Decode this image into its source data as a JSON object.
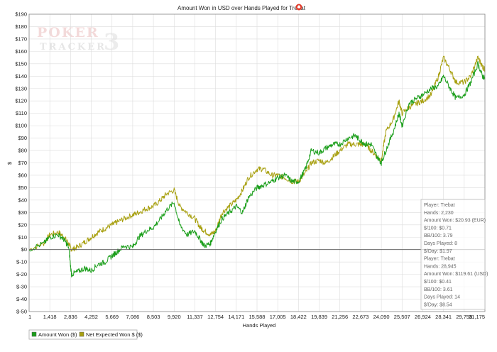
{
  "chart_data": {
    "type": "line",
    "title": "Amount Won in USD over Hands Played for Trebat",
    "xlabel": "Hands Played",
    "ylabel": "$",
    "xlim": [
      1,
      31175
    ],
    "ylim": [
      -50,
      190
    ],
    "grid": true,
    "legend_position": "bottom-left",
    "x_ticks": [
      "1",
      "1,418",
      "2,836",
      "4,252",
      "5,669",
      "7,086",
      "8,503",
      "9,920",
      "11,337",
      "12,754",
      "14,171",
      "15,588",
      "17,005",
      "18,422",
      "19,839",
      "21,256",
      "22,673",
      "24,090",
      "25,507",
      "26,924",
      "28,341",
      "29,758",
      "31,175"
    ],
    "y_ticks": [
      "$-50",
      "$-40",
      "$-30",
      "$-20",
      "$-10",
      "$0",
      "$10",
      "$20",
      "$30",
      "$40",
      "$50",
      "$60",
      "$70",
      "$80",
      "$90",
      "$100",
      "$110",
      "$120",
      "$130",
      "$140",
      "$150",
      "$160",
      "$170",
      "$180",
      "$190"
    ],
    "series": [
      {
        "name": "Amount Won ($)",
        "color": "#1a9e1a",
        "x": [
          1,
          1000,
          1418,
          2000,
          2400,
          2700,
          2900,
          3300,
          3800,
          4252,
          4700,
          5200,
          5669,
          6000,
          6500,
          7086,
          7500,
          8000,
          8503,
          9000,
          9400,
          9920,
          10300,
          10800,
          11337,
          11700,
          12000,
          12400,
          12754,
          13200,
          13700,
          14171,
          14600,
          15000,
          15588,
          16000,
          16600,
          17005,
          17500,
          18000,
          18422,
          18900,
          19300,
          19839,
          20300,
          20800,
          21256,
          21800,
          22300,
          22673,
          23000,
          23400,
          23800,
          24090,
          24400,
          24900,
          25300,
          25507,
          26000,
          26500,
          26924,
          27500,
          28000,
          28341,
          28800,
          29200,
          29758,
          30200,
          30700,
          31000,
          31175
        ],
        "y": [
          0,
          5,
          10,
          12,
          8,
          2,
          -20,
          -18,
          -15,
          -17,
          -12,
          -10,
          -5,
          -2,
          3,
          2,
          10,
          15,
          18,
          25,
          32,
          38,
          20,
          12,
          15,
          8,
          3,
          5,
          15,
          25,
          30,
          35,
          30,
          42,
          50,
          52,
          55,
          58,
          60,
          55,
          55,
          65,
          80,
          78,
          82,
          85,
          85,
          90,
          92,
          88,
          85,
          85,
          75,
          70,
          80,
          95,
          110,
          100,
          118,
          122,
          125,
          130,
          132,
          140,
          130,
          122,
          125,
          135,
          150,
          140,
          138
        ]
      },
      {
        "name": "Net Expected Won $ ($)",
        "color": "#a8a010",
        "x": [
          1,
          1000,
          1418,
          2000,
          2400,
          2700,
          2900,
          3300,
          3800,
          4252,
          4700,
          5200,
          5669,
          6000,
          6500,
          7086,
          7500,
          8000,
          8503,
          9000,
          9400,
          9920,
          10300,
          10800,
          11337,
          11700,
          12000,
          12400,
          12754,
          13200,
          13700,
          14171,
          14600,
          15000,
          15588,
          16000,
          16600,
          17005,
          17500,
          18000,
          18422,
          18900,
          19300,
          19839,
          20300,
          20800,
          21256,
          21800,
          22300,
          22673,
          23000,
          23400,
          23800,
          24090,
          24400,
          24900,
          25300,
          25507,
          26000,
          26500,
          26924,
          27500,
          28000,
          28341,
          28800,
          29200,
          29758,
          30200,
          30700,
          31000,
          31175
        ],
        "y": [
          0,
          5,
          12,
          14,
          10,
          5,
          0,
          2,
          6,
          10,
          14,
          17,
          20,
          22,
          25,
          28,
          30,
          33,
          35,
          40,
          45,
          48,
          35,
          30,
          25,
          18,
          15,
          12,
          15,
          30,
          35,
          40,
          48,
          58,
          65,
          65,
          60,
          60,
          58,
          55,
          55,
          62,
          70,
          72,
          70,
          75,
          80,
          85,
          85,
          85,
          85,
          80,
          75,
          72,
          95,
          105,
          120,
          110,
          115,
          118,
          120,
          125,
          140,
          155,
          145,
          135,
          135,
          140,
          155,
          148,
          145
        ]
      }
    ],
    "stats_box": [
      "Player: Trebat",
      "Hands: 2,230",
      "Amount Won: $20.93 (EUR)",
      "$/100: $0.71",
      "BB/100: 3.79",
      "Days Played: 8",
      "$/Day: $1.97",
      "Player: Trebat",
      "Hands: 28,945",
      "Amount Won: $119.61 (USD)",
      "$/100: $0.41",
      "BB/100: 3.61",
      "Days Played: 14",
      "$/Day: $8.54"
    ],
    "watermark": [
      "POKER",
      "TRACKER",
      "3"
    ]
  }
}
